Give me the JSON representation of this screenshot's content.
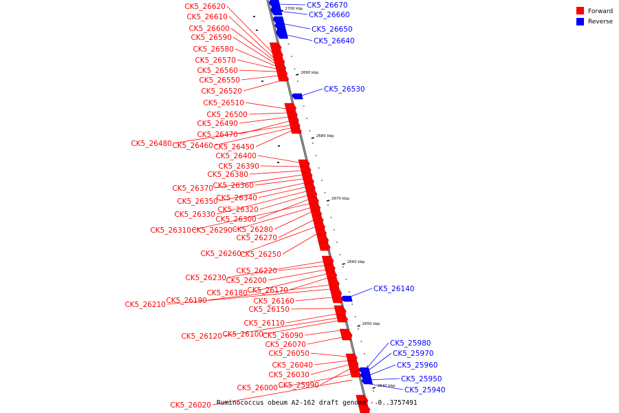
{
  "colors": {
    "forward": "#ff0000",
    "reverse": "#0000ff",
    "backbone": "#808080",
    "text": "#000000"
  },
  "legend": [
    {
      "key": "forward",
      "label": "Forward",
      "color": "#ff0000"
    },
    {
      "key": "reverse",
      "label": "Reverse",
      "color": "#0000ff"
    }
  ],
  "caption": "Ruminococcus obeum A2-162 draft genome - 0..3757491",
  "kbp_ticks": [
    "2700 kbp",
    "2690 kbp",
    "2680 kbp",
    "2670 kbp",
    "2660 kbp",
    "2650 kbp",
    "2640 kbp"
  ],
  "genes_forward": [
    "CK5_26620",
    "CK5_26610",
    "CK5_26600",
    "CK5_26590",
    "CK5_26580",
    "CK5_26570",
    "CK5_26560",
    "CK5_26550",
    "CK5_26520",
    "CK5_26510",
    "CK5_26500",
    "CK5_26490",
    "CK5_26470",
    "CK5_26480",
    "CK5_26460",
    "CK5_26450",
    "CK5_26400",
    "CK5_26390",
    "CK5_26380",
    "CK5_26370",
    "CK5_26360",
    "CK5_26350",
    "CK5_26340",
    "CK5_26330",
    "CK5_26320",
    "CK5_26300",
    "CK5_26310",
    "CK5_26290",
    "CK5_26280",
    "CK5_26270",
    "CK5_26260",
    "CK5_26250",
    "CK5_26230",
    "CK5_26220",
    "CK5_26200",
    "CK5_26180",
    "CK5_26170",
    "CK5_26210",
    "CK5_26190",
    "CK5_26160",
    "CK5_26150",
    "CK5_26110",
    "CK5_26120",
    "CK5_26100",
    "CK5_26090",
    "CK5_26070",
    "CK5_26050",
    "CK5_26040",
    "CK5_26030",
    "CK5_25990",
    "CK5_26000",
    "CK5_26020"
  ],
  "genes_reverse": [
    "CK5_26670",
    "CK5_26660",
    "CK5_26650",
    "CK5_26640",
    "CK5_26530",
    "CK5_26140",
    "CK5_25980",
    "CK5_25970",
    "CK5_25960",
    "CK5_25950",
    "CK5_25940"
  ]
}
